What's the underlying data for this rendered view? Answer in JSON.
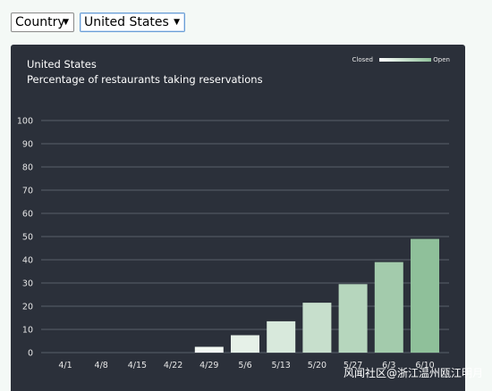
{
  "controls": {
    "country_label": "Country",
    "country_value": "United States"
  },
  "chart_data": {
    "type": "bar",
    "title": "United States",
    "subtitle": "Percentage of restaurants taking reservations",
    "xlabel": "",
    "ylabel": "",
    "ylim": [
      0,
      100
    ],
    "yticks": [
      0,
      10,
      20,
      30,
      40,
      50,
      60,
      70,
      80,
      90,
      100
    ],
    "grid": true,
    "categories": [
      "4/1",
      "4/8",
      "4/15",
      "4/22",
      "4/29",
      "5/6",
      "5/13",
      "5/20",
      "5/27",
      "6/3",
      "6/10"
    ],
    "values": [
      0,
      0,
      0,
      0,
      2.5,
      7.5,
      13.5,
      21.5,
      29.5,
      39,
      49
    ],
    "legend": {
      "low_label": "Closed",
      "high_label": "Open",
      "placement": "top-right"
    },
    "colors": {
      "low": "#ffffff",
      "high": "#8fc09a",
      "background": "#2b303a",
      "grid": "#5a606b"
    }
  },
  "watermark": "风闻社区@浙江温州瓯江明月"
}
